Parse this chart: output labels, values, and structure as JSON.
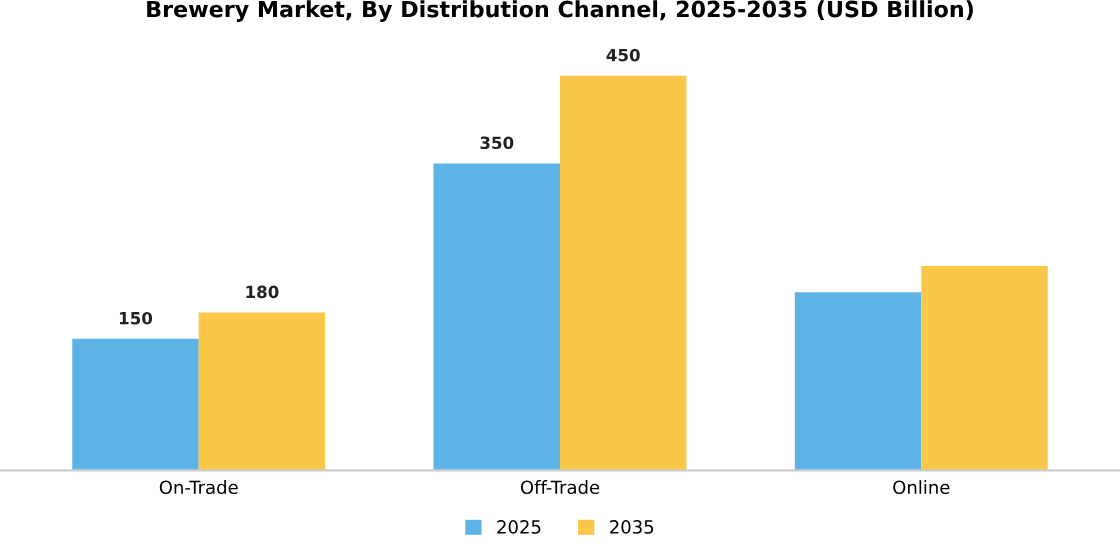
{
  "chart_data": {
    "type": "bar",
    "title": "Brewery Market, By Distribution Channel, 2025-2035 (USD Billion)",
    "categories": [
      "On-Trade",
      "Off-Trade",
      "Online"
    ],
    "series": [
      {
        "name": "2025",
        "color": "#5bb4e5",
        "values": [
          150,
          350,
          203
        ],
        "value_labels": [
          "150",
          "350",
          null
        ]
      },
      {
        "name": "2035",
        "color": "#fbc748",
        "values": [
          180,
          450,
          233
        ],
        "value_labels": [
          "180",
          "450",
          null
        ]
      }
    ],
    "legend": "bottom",
    "grid": false,
    "tick_labels": "x"
  }
}
